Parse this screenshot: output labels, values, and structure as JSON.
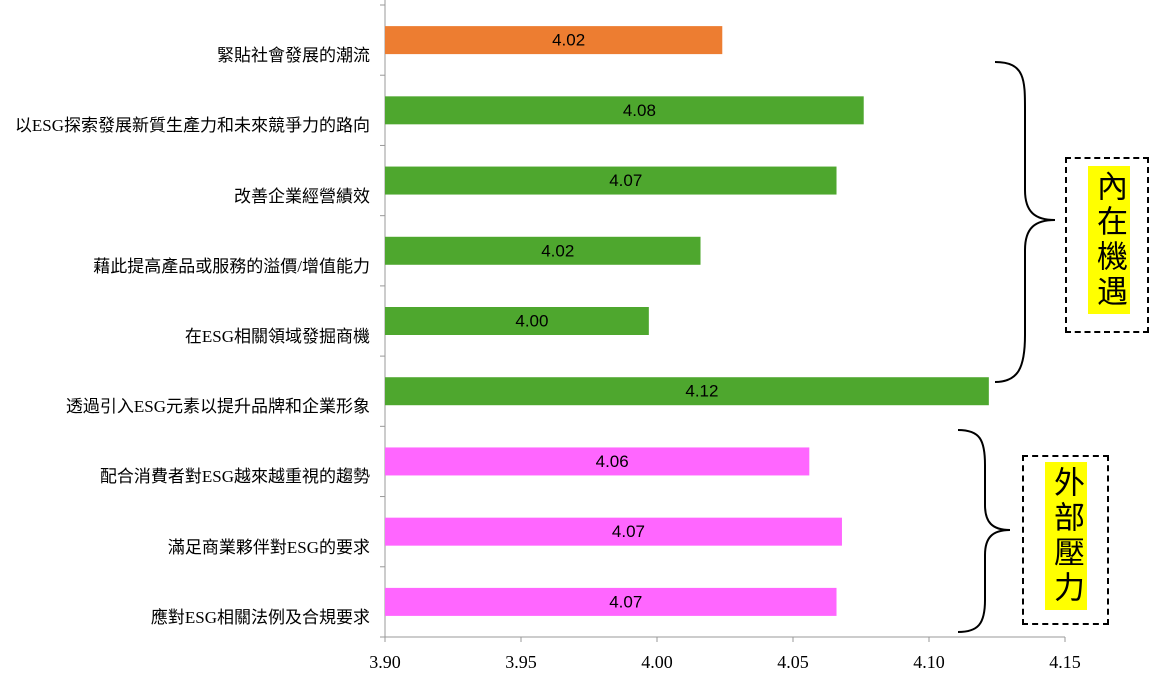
{
  "chart_data": {
    "type": "hbar",
    "categories": [
      "緊貼社會發展的潮流",
      "以ESG探索發展新質生產力和未來競爭力的路向",
      "改善企業經營績效",
      "藉此提高產品或服務的溢價/增值能力",
      "在ESG相關領域發掘商機",
      "透過引入ESG元素以提升品牌和企業形象",
      "配合消費者對ESG越來越重視的趨勢",
      "滿足商業夥伴對ESG的要求",
      "應對ESG相關法例及合規要求"
    ],
    "values": [
      4.024,
      4.076,
      4.066,
      4.016,
      3.997,
      4.122,
      4.056,
      4.068,
      4.066
    ],
    "value_labels": [
      "4.02",
      "4.08",
      "4.07",
      "4.02",
      "4.00",
      "4.12",
      "4.06",
      "4.07",
      "4.07"
    ],
    "colors": [
      "#ed7d31",
      "#4ea72e",
      "#4ea72e",
      "#4ea72e",
      "#4ea72e",
      "#4ea72e",
      "#ff66ff",
      "#ff66ff",
      "#ff66ff"
    ],
    "xlim": [
      3.9,
      4.15
    ],
    "xticks": [
      {
        "value": 3.9,
        "label": "3.90"
      },
      {
        "value": 3.95,
        "label": "3.95"
      },
      {
        "value": 4.0,
        "label": "4.00"
      },
      {
        "value": 4.05,
        "label": "4.05"
      },
      {
        "value": 4.1,
        "label": "4.10"
      },
      {
        "value": 4.15,
        "label": "4.15"
      }
    ],
    "annotations": [
      "內在機遇",
      "外部壓力"
    ]
  }
}
